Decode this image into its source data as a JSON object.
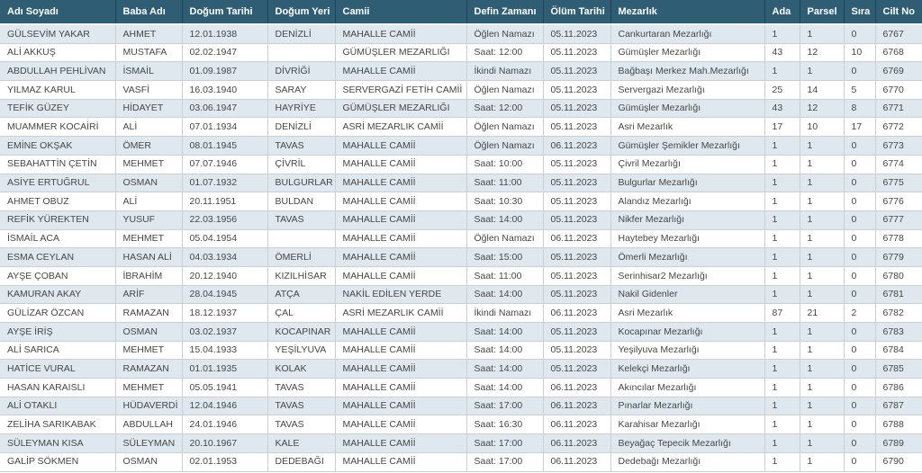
{
  "colors": {
    "header_bg": "#2F5D74",
    "header_text": "#FFFFFF",
    "header_sep": "#1C4254",
    "row_alt_bg": "#DEE8EE",
    "row_bg": "#FFFFFF",
    "cell_border": "#C9CFD4",
    "cell_text": "#474747"
  },
  "table": {
    "columns": [
      "Adı Soyadı",
      "Baba Adı",
      "Doğum Tarihi",
      "Doğum Yeri",
      "Camii",
      "Defin Zamanı",
      "Ölüm Tarihi",
      "Mezarlık",
      "Ada",
      "Parsel",
      "Sıra",
      "Cilt No"
    ],
    "rows": [
      [
        "GÜLSEVİM YAKAR",
        "AHMET",
        "12.01.1938",
        "DENİZLİ",
        "MAHALLE CAMİİ",
        "Öğlen Namazı",
        "05.11.2023",
        "Cankurtaran Mezarlığı",
        "1",
        "1",
        "0",
        "6767"
      ],
      [
        "ALİ AKKUŞ",
        "MUSTAFA",
        "02.02.1947",
        "",
        "GÜMÜŞLER MEZARLIĞI",
        "Saat: 12:00",
        "05.11.2023",
        "Gümüşler Mezarlığı",
        "43",
        "12",
        "10",
        "6768"
      ],
      [
        "ABDULLAH PEHLİVAN",
        "İSMAİL",
        "01.09.1987",
        "DİVRİĞİ",
        "MAHALLE CAMİİ",
        "İkindi Namazı",
        "05.11.2023",
        "Bağbaşı Merkez Mah.Mezarlığı",
        "1",
        "1",
        "0",
        "6769"
      ],
      [
        "YILMAZ KARUL",
        "VASFİ",
        "16.03.1940",
        "SARAY",
        "SERVERGAZİ FETİH CAMİİ",
        "Öğlen Namazı",
        "05.11.2023",
        "Servergazi Mezarlığı",
        "25",
        "14",
        "5",
        "6770"
      ],
      [
        "TEFİK GÜZEY",
        "HİDAYET",
        "03.06.1947",
        "HAYRİYE",
        "GÜMÜŞLER MEZARLIĞI",
        "Saat: 12:00",
        "05.11.2023",
        "Gümüşler Mezarlığı",
        "43",
        "12",
        "8",
        "6771"
      ],
      [
        "MUAMMER KOCAİRİ",
        "ALİ",
        "07.01.1934",
        "DENİZLİ",
        "ASRİ MEZARLIK CAMİİ",
        "Öğlen Namazı",
        "05.11.2023",
        "Asri Mezarlık",
        "17",
        "10",
        "17",
        "6772"
      ],
      [
        "EMİNE OKŞAK",
        "ÖMER",
        "08.01.1945",
        "TAVAS",
        "MAHALLE CAMİİ",
        "Öğlen Namazı",
        "06.11.2023",
        "Gümüşler Şemikler Mezarlığı",
        "1",
        "1",
        "0",
        "6773"
      ],
      [
        "SEBAHATTİN ÇETİN",
        "MEHMET",
        "07.07.1946",
        "ÇİVRİL",
        "MAHALLE CAMİİ",
        "Saat: 10:00",
        "05.11.2023",
        "Çivril Mezarlığı",
        "1",
        "1",
        "0",
        "6774"
      ],
      [
        "ASİYE ERTUĞRUL",
        "OSMAN",
        "01.07.1932",
        "BULGURLAR",
        "MAHALLE CAMİİ",
        "Saat: 11:00",
        "05.11.2023",
        "Bulgurlar Mezarlığı",
        "1",
        "1",
        "0",
        "6775"
      ],
      [
        "AHMET OBUZ",
        "ALİ",
        "20.11.1951",
        "BULDAN",
        "MAHALLE CAMİİ",
        "Saat: 10:30",
        "05.11.2023",
        "Alandız Mezarlığı",
        "1",
        "1",
        "0",
        "6776"
      ],
      [
        "REFİK YÜREKTEN",
        "YUSUF",
        "22.03.1956",
        "TAVAS",
        "MAHALLE CAMİİ",
        "Saat: 14:00",
        "05.11.2023",
        "Nikfer Mezarlığı",
        "1",
        "1",
        "0",
        "6777"
      ],
      [
        "İSMAİL ACA",
        "MEHMET",
        "05.04.1954",
        "",
        "MAHALLE CAMİİ",
        "Öğlen Namazı",
        "06.11.2023",
        "Haytebey Mezarlığı",
        "1",
        "1",
        "0",
        "6778"
      ],
      [
        "ESMA CEYLAN",
        "HASAN ALİ",
        "04.03.1934",
        "ÖMERLİ",
        "MAHALLE CAMİİ",
        "Saat: 15:00",
        "05.11.2023",
        "Ömerli Mezarlığı",
        "1",
        "1",
        "0",
        "6779"
      ],
      [
        "AYŞE ÇOBAN",
        "İBRAHİM",
        "20.12.1940",
        "KIZILHİSAR",
        "MAHALLE CAMİİ",
        "Saat: 11:00",
        "05.11.2023",
        "Serinhisar2 Mezarlığı",
        "1",
        "1",
        "0",
        "6780"
      ],
      [
        "KAMURAN AKAY",
        "ARİF",
        "28.04.1945",
        "ATÇA",
        "NAKİL EDİLEN YERDE",
        "Saat: 14:00",
        "05.11.2023",
        "Nakil Gidenler",
        "1",
        "1",
        "0",
        "6781"
      ],
      [
        "GÜLİZAR ÖZCAN",
        "RAMAZAN",
        "18.12.1937",
        "ÇAL",
        "ASRİ MEZARLIK CAMİİ",
        "İkindi Namazı",
        "06.11.2023",
        "Asri Mezarlık",
        "87",
        "21",
        "2",
        "6782"
      ],
      [
        "AYŞE İRİŞ",
        "OSMAN",
        "03.02.1937",
        "KOCAPINAR",
        "MAHALLE CAMİİ",
        "Saat: 14:00",
        "05.11.2023",
        "Kocapınar Mezarlığı",
        "1",
        "1",
        "0",
        "6783"
      ],
      [
        "ALİ SARICA",
        "MEHMET",
        "15.04.1933",
        "YEŞİLYUVA",
        "MAHALLE CAMİİ",
        "Saat: 14:00",
        "05.11.2023",
        "Yeşilyuva Mezarlığı",
        "1",
        "1",
        "0",
        "6784"
      ],
      [
        "HATİCE VURAL",
        "RAMAZAN",
        "01.01.1935",
        "KOLAK",
        "MAHALLE CAMİİ",
        "Saat: 14:00",
        "05.11.2023",
        "Kelekçi Mezarlığı",
        "1",
        "1",
        "0",
        "6785"
      ],
      [
        "HASAN KARAISLI",
        "MEHMET",
        "05.05.1941",
        "TAVAS",
        "MAHALLE CAMİİ",
        "Saat: 14:00",
        "06.11.2023",
        "Akıncılar Mezarlığı",
        "1",
        "1",
        "0",
        "6786"
      ],
      [
        "ALİ OTAKLI",
        "HÜDAVERDİ",
        "12.04.1946",
        "TAVAS",
        "MAHALLE CAMİİ",
        "Saat: 17:00",
        "06.11.2023",
        "Pınarlar Mezarlığı",
        "1",
        "1",
        "0",
        "6787"
      ],
      [
        "ZELİHA SARIKABAK",
        "ABDULLAH",
        "24.01.1946",
        "TAVAS",
        "MAHALLE CAMİİ",
        "Saat: 16:30",
        "06.11.2023",
        "Karahisar Mezarlığı",
        "1",
        "1",
        "0",
        "6788"
      ],
      [
        "SÜLEYMAN KISA",
        "SÜLEYMAN",
        "20.10.1967",
        "KALE",
        "MAHALLE CAMİİ",
        "Saat: 17:00",
        "06.11.2023",
        "Beyağaç Tepecik Mezarlığı",
        "1",
        "1",
        "0",
        "6789"
      ],
      [
        "GALİP SÖKMEN",
        "OSMAN",
        "02.01.1953",
        "DEDEBAĞI",
        "MAHALLE CAMİİ",
        "Saat: 17:00",
        "06.11.2023",
        "Dedebağı Mezarlığı",
        "1",
        "1",
        "0",
        "6790"
      ]
    ]
  }
}
